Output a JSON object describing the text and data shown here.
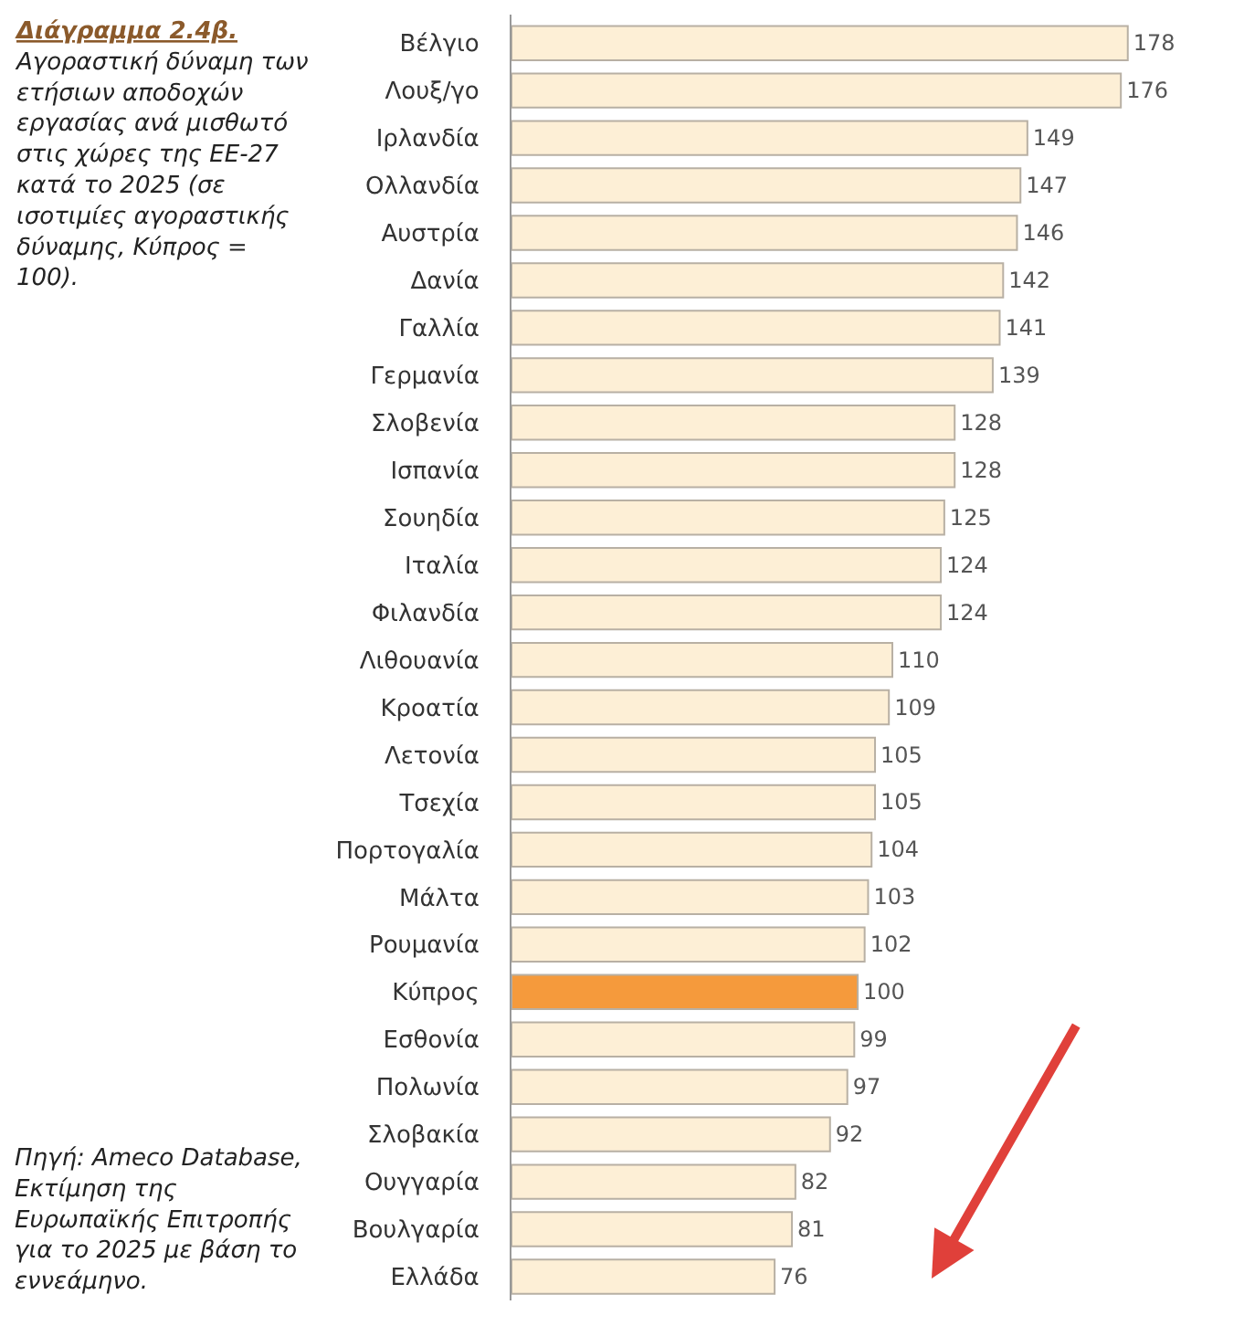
{
  "chart_data": {
    "type": "bar",
    "orientation": "horizontal",
    "title": "Διάγραμμα 2.4β.",
    "subtitle": "Αγοραστική δύναμη των ετήσιων αποδοχών εργασίας ανά μισθωτό στις χώρες της ΕΕ-27 κατά το 2025 (σε ισοτιμίες αγοραστικής δύναμης, Κύπρος = 100).",
    "categories": [
      "Βέλγιο",
      "Λουξ/γο",
      "Ιρλανδία",
      "Ολλανδία",
      "Αυστρία",
      "Δανία",
      "Γαλλία",
      "Γερμανία",
      "Σλοβενία",
      "Ισπανία",
      "Σουηδία",
      "Ιταλία",
      "Φιλανδία",
      "Λιθουανία",
      "Κροατία",
      "Λετονία",
      "Τσεχία",
      "Πορτογαλία",
      "Μάλτα",
      "Ρουμανία",
      "Κύπρος",
      "Εσθονία",
      "Πολωνία",
      "Σλοβακία",
      "Ουγγαρία",
      "Βουλγαρία",
      "Ελλάδα"
    ],
    "values": [
      178,
      176,
      149,
      147,
      146,
      142,
      141,
      139,
      128,
      128,
      125,
      124,
      124,
      110,
      109,
      105,
      105,
      104,
      103,
      102,
      100,
      99,
      97,
      92,
      82,
      81,
      76
    ],
    "colors": [
      "#fdefd6",
      "#fdefd6",
      "#fdefd6",
      "#fdefd6",
      "#fdefd6",
      "#fdefd6",
      "#fdefd6",
      "#fdefd6",
      "#fdefd6",
      "#fdefd6",
      "#fdefd6",
      "#fdefd6",
      "#fdefd6",
      "#fdefd6",
      "#fdefd6",
      "#fdefd6",
      "#fdefd6",
      "#fdefd6",
      "#fdefd6",
      "#fdefd6",
      "#f59a3c",
      "#fdefd6",
      "#fdefd6",
      "#fdefd6",
      "#fdefd6",
      "#fdefd6",
      "#fdefd6"
    ],
    "data_labels": true,
    "annotations": [
      "Πηγή: Ameco Database, Εκτίμηση της Ευρωπαϊκής Επιτροπής για το 2025 με βάση το εννεάμηνο."
    ]
  }
}
